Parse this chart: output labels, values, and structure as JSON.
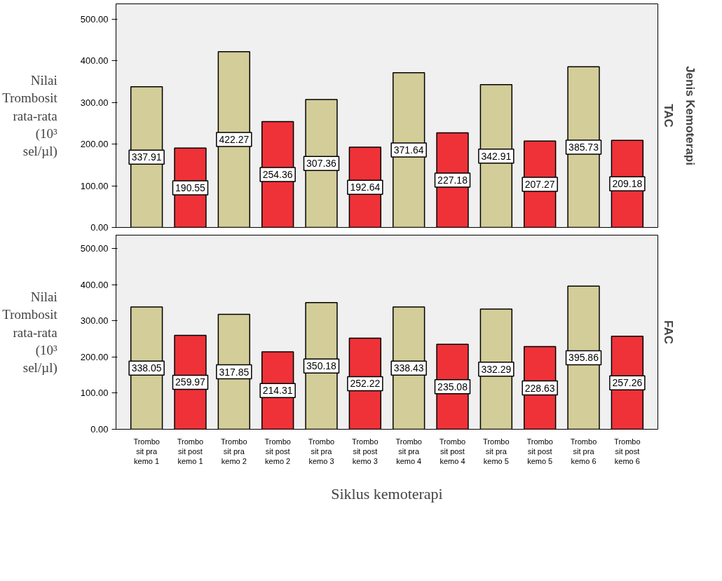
{
  "chart_data": [
    {
      "type": "bar",
      "title": "TAC",
      "ylabel": "Nilai Trombosit rata-rata (10³ sel/µl)",
      "annotations": [
        "Jenis Kemoterapi"
      ],
      "categories": [
        "Trombo sit pra kemo 1",
        "Trombo sit post kemo 1",
        "Trombo sit pra kemo 2",
        "Trombo sit post kemo 2",
        "Trombo sit pra kemo 3",
        "Trombo sit post kemo 3",
        "Trombo sit pra kemo 4",
        "Trombo sit post kemo 4",
        "Trombo sit pra kemo 5",
        "Trombo sit post kemo 5",
        "Trombo sit pra kemo 6",
        "Trombo sit post kemo 6"
      ],
      "values": [
        337.91,
        190.55,
        422.27,
        254.36,
        307.36,
        192.64,
        371.64,
        227.18,
        342.91,
        207.27,
        385.73,
        209.18
      ],
      "colors": [
        "#d3cd99",
        "#ee3238",
        "#d3cd99",
        "#ee3238",
        "#d3cd99",
        "#ee3238",
        "#d3cd99",
        "#ee3238",
        "#d3cd99",
        "#ee3238",
        "#d3cd99",
        "#ee3238"
      ],
      "ylim": [
        0,
        537
      ],
      "yticks": [
        {
          "value": 0,
          "label": "0.00"
        },
        {
          "value": 100,
          "label": "100.00"
        },
        {
          "value": 200,
          "label": "200.00"
        },
        {
          "value": 300,
          "label": "300.00"
        },
        {
          "value": 400,
          "label": "400.00"
        },
        {
          "value": 500,
          "label": "500.00"
        }
      ],
      "data_labels": true,
      "grid": false,
      "tick_labels": "y"
    },
    {
      "type": "bar",
      "title": "FAC",
      "ylabel": "Nilai Trombosit rata-rata (10³ sel/µl)",
      "xlabel": "Siklus kemoterapi",
      "categories": [
        "Trombo sit pra kemo 1",
        "Trombo sit post kemo 1",
        "Trombo sit pra kemo 2",
        "Trombo sit post kemo 2",
        "Trombo sit pra kemo 3",
        "Trombo sit post kemo 3",
        "Trombo sit pra kemo 4",
        "Trombo sit post kemo 4",
        "Trombo sit pra kemo 5",
        "Trombo sit post kemo 5",
        "Trombo sit pra kemo 6",
        "Trombo sit post kemo 6"
      ],
      "values": [
        338.05,
        259.97,
        317.85,
        214.31,
        350.18,
        252.22,
        338.43,
        235.08,
        332.29,
        228.63,
        395.86,
        257.26
      ],
      "colors": [
        "#d3cd99",
        "#ee3238",
        "#d3cd99",
        "#ee3238",
        "#d3cd99",
        "#ee3238",
        "#d3cd99",
        "#ee3238",
        "#d3cd99",
        "#ee3238",
        "#d3cd99",
        "#ee3238"
      ],
      "ylim": [
        0,
        537
      ],
      "yticks": [
        {
          "value": 0,
          "label": "0.00"
        },
        {
          "value": 100,
          "label": "100.00"
        },
        {
          "value": 200,
          "label": "200.00"
        },
        {
          "value": 300,
          "label": "300.00"
        },
        {
          "value": 400,
          "label": "400.00"
        },
        {
          "value": 500,
          "label": "500.00"
        }
      ],
      "data_labels": true,
      "grid": false
    }
  ]
}
